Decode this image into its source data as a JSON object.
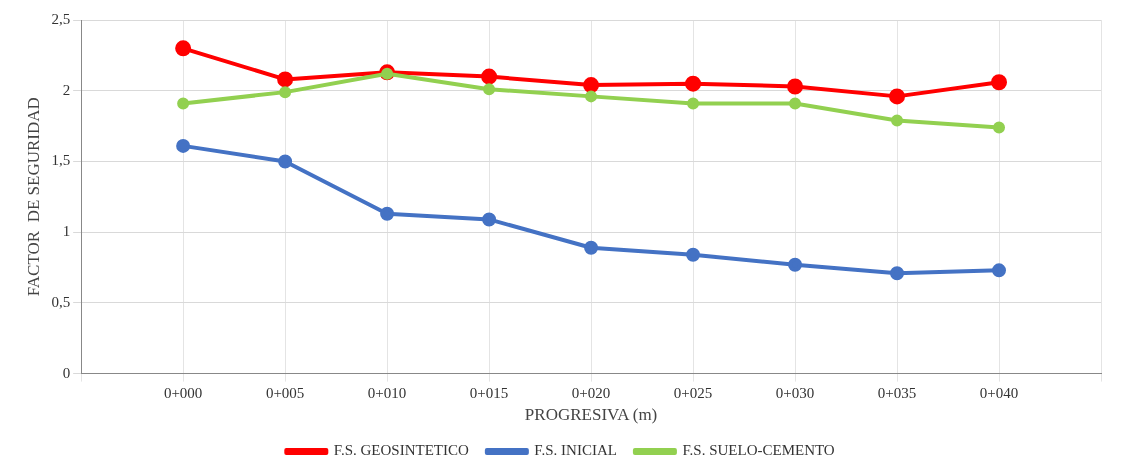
{
  "chart_data": {
    "type": "line",
    "xlabel": "PROGRESIVA (m)",
    "ylabel": "FACTOR  DE SEGURIDAD",
    "categories": [
      null,
      "0+000",
      "0+005",
      "0+010",
      "0+015",
      "0+020",
      "0+025",
      "0+030",
      "0+035",
      "0+040",
      null
    ],
    "series": [
      {
        "name": "F.S. GEOSINTETICO",
        "color": "#ff0000",
        "values": [
          null,
          2.3,
          2.08,
          2.13,
          2.1,
          2.04,
          2.05,
          2.03,
          1.96,
          2.06,
          null
        ]
      },
      {
        "name": "F.S. INICIAL",
        "color": "#4472c4",
        "values": [
          null,
          1.61,
          1.5,
          1.13,
          1.09,
          0.89,
          0.84,
          0.77,
          0.71,
          0.73,
          null
        ]
      },
      {
        "name": "F.S. SUELO-CEMENTO",
        "color": "#92d050",
        "values": [
          null,
          1.91,
          1.99,
          2.12,
          2.01,
          1.96,
          1.91,
          1.91,
          1.79,
          1.74,
          null
        ]
      }
    ],
    "ylim": [
      0,
      2.5
    ],
    "yticks": [
      0,
      {
        "value": 0.5,
        "label": "0,5"
      },
      1,
      {
        "value": 1.5,
        "label": "1,5"
      },
      2,
      {
        "value": 2.5,
        "label": "2,5"
      }
    ],
    "grid": true,
    "legend": "bottom",
    "marker": "circle"
  }
}
